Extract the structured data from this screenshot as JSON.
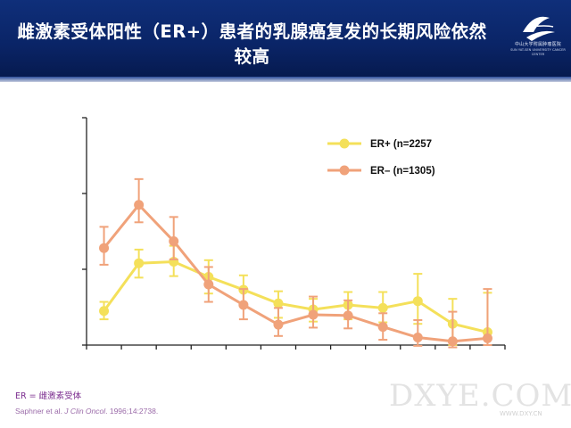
{
  "slide": {
    "title": "雌激素受体阳性（ER+）患者的乳腺癌复发的长期风险依然较高",
    "logo_text": "中山大学附属肿瘤医院",
    "logo_subtext": "SUN YAT-SEN UNIVERSITY CANCER CENTER",
    "footnote": "ER = 雌激素受体",
    "citation_authors": "Saphner et al. ",
    "citation_journal": "J Clin Oncol",
    "citation_rest": ". 1996;14:2738.",
    "watermark": "DXYE.COM",
    "watermark_sub": "WWW.DXY.CN"
  },
  "colors": {
    "header": "#0a2466",
    "er_pos": "#f4e05a",
    "er_neg": "#f0a27a"
  },
  "chart_data": {
    "type": "line",
    "title": "",
    "xlabel": "",
    "ylabel": "",
    "x": [
      1,
      2,
      3,
      4,
      5,
      6,
      7,
      8,
      9,
      10,
      11,
      12
    ],
    "ylim": [
      0,
      0.3
    ],
    "series": [
      {
        "name": "ER+ (n=2257",
        "color": "#f4e05a",
        "values": [
          0.045,
          0.108,
          0.11,
          0.09,
          0.073,
          0.055,
          0.047,
          0.053,
          0.049,
          0.058,
          0.028,
          0.017
        ],
        "err_low": [
          0.011,
          0.019,
          0.019,
          0.022,
          0.022,
          0.019,
          0.016,
          0.019,
          0.019,
          0.03,
          0.028,
          0.017
        ],
        "err_high": [
          0.012,
          0.018,
          0.021,
          0.022,
          0.019,
          0.016,
          0.014,
          0.017,
          0.021,
          0.036,
          0.033,
          0.052
        ]
      },
      {
        "name": "ER– (n=1305)",
        "color": "#f0a27a",
        "values": [
          0.128,
          0.185,
          0.137,
          0.08,
          0.053,
          0.027,
          0.04,
          0.039,
          0.024,
          0.01,
          0.005,
          0.009
        ],
        "err_low": [
          0.022,
          0.023,
          0.024,
          0.023,
          0.019,
          0.015,
          0.017,
          0.017,
          0.017,
          0.011,
          0.008,
          0.009
        ],
        "err_high": [
          0.028,
          0.034,
          0.032,
          0.023,
          0.021,
          0.022,
          0.024,
          0.02,
          0.018,
          0.023,
          0.039,
          0.065
        ]
      }
    ],
    "yticks": [
      0,
      0.1,
      0.2,
      0.3
    ],
    "grid": false,
    "legend": "top-right"
  }
}
